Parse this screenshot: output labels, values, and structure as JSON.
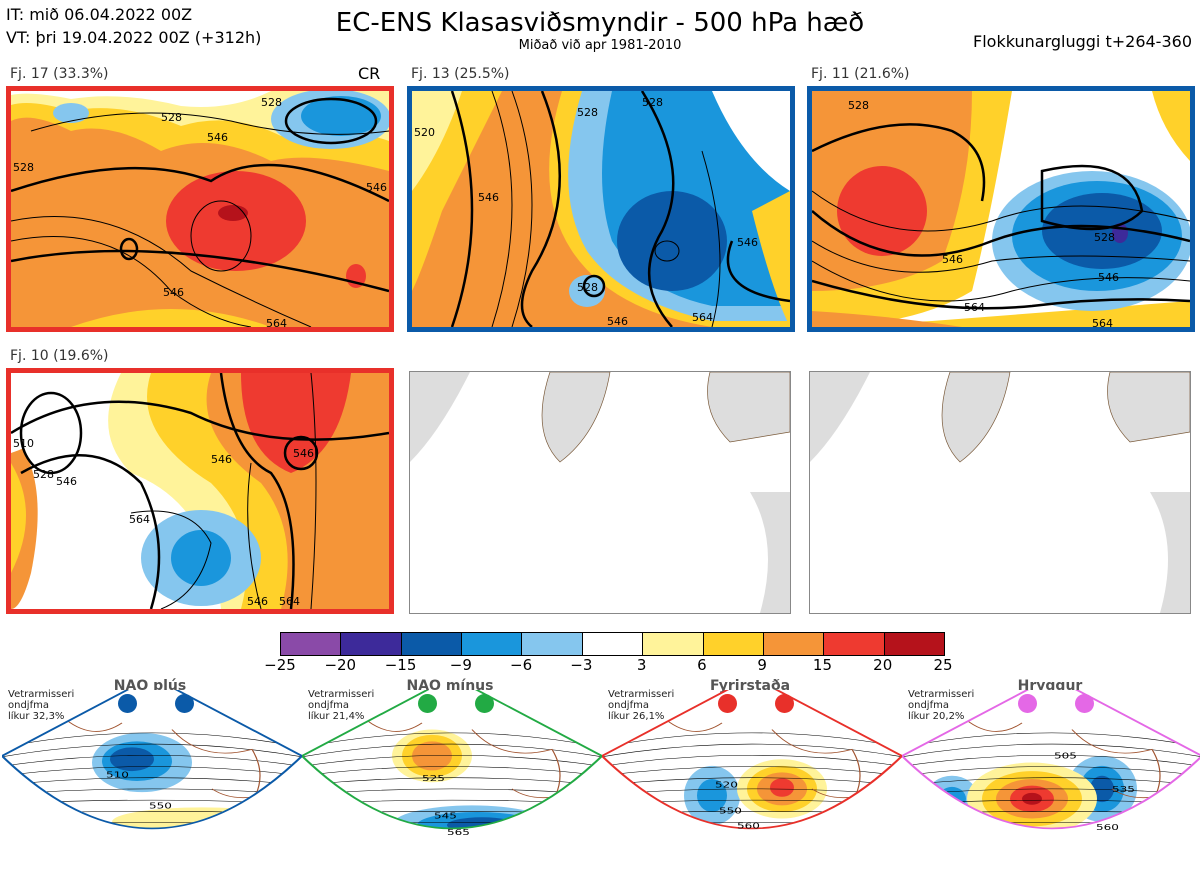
{
  "header": {
    "init_time": "IT: mið 06.04.2022 00Z",
    "valid_time": "VT: þri 19.04.2022 00Z  (+312h)",
    "title": "EC-ENS Klasasviðsmyndir - 500 hPa hæð",
    "subtitle": "Miðað við apr 1981-2010",
    "window": "Flokkunargluggi t+264-360"
  },
  "clusters": [
    {
      "label": "Fj. 17 (33.3%)",
      "badge": "CR",
      "regime_color": "#e8302a",
      "contours": [
        {
          "text": "528"
        },
        {
          "text": "528"
        },
        {
          "text": "546"
        },
        {
          "text": "546"
        },
        {
          "text": "546"
        },
        {
          "text": "528"
        },
        {
          "text": "564"
        }
      ]
    },
    {
      "label": "Fj. 13 (25.5%)",
      "badge": "",
      "regime_color": "#0b5aa8",
      "contours": [
        {
          "text": "528"
        },
        {
          "text": "528"
        },
        {
          "text": "520"
        },
        {
          "text": "546"
        },
        {
          "text": "528"
        },
        {
          "text": "546"
        },
        {
          "text": "546"
        },
        {
          "text": "564"
        }
      ]
    },
    {
      "label": "Fj. 11 (21.6%)",
      "badge": "",
      "regime_color": "#0b5aa8",
      "contours": [
        {
          "text": "528"
        },
        {
          "text": "546"
        },
        {
          "text": "528"
        },
        {
          "text": "546"
        },
        {
          "text": "564"
        },
        {
          "text": "564"
        }
      ]
    },
    {
      "label": "Fj. 10 (19.6%)",
      "badge": "",
      "regime_color": "#e8302a",
      "contours": [
        {
          "text": "510"
        },
        {
          "text": "528"
        },
        {
          "text": "546"
        },
        {
          "text": "546"
        },
        {
          "text": "564"
        },
        {
          "text": "546"
        },
        {
          "text": "546"
        },
        {
          "text": "564"
        }
      ]
    }
  ],
  "colorbar": {
    "ticks": [
      "−25",
      "−20",
      "−15",
      "−9",
      "−6",
      "−3",
      "3",
      "6",
      "9",
      "15",
      "20",
      "25"
    ],
    "colors": [
      "#8a4aa8",
      "#3d2a9a",
      "#0b5aa8",
      "#1a96dc",
      "#85c6ee",
      "#ffffff",
      "#fff39a",
      "#ffd12a",
      "#f59538",
      "#ee3a30",
      "#b5121b"
    ]
  },
  "regimes": [
    {
      "name": "NAO plús",
      "note_lines": [
        "Vetrarmisseri",
        "ondjfma",
        "líkur 32,3%"
      ],
      "color": "#0b5aa8",
      "labels": [
        "510",
        "550"
      ]
    },
    {
      "name": "NAO mínus",
      "note_lines": [
        "Vetrarmisseri",
        "ondjfma",
        "líkur 21,4%"
      ],
      "color": "#22aa44",
      "labels": [
        "525",
        "545",
        "565"
      ]
    },
    {
      "name": "Fyrirstaða",
      "note_lines": [
        "Vetrarmisseri",
        "ondjfma",
        "líkur 26,1%"
      ],
      "color": "#e8302a",
      "labels": [
        "520",
        "550",
        "560"
      ]
    },
    {
      "name": "Hryggur",
      "note_lines": [
        "Vetrarmisseri",
        "ondjfma",
        "líkur 20,2%"
      ],
      "color": "#e468e6",
      "labels": [
        "505",
        "535",
        "560"
      ]
    }
  ]
}
